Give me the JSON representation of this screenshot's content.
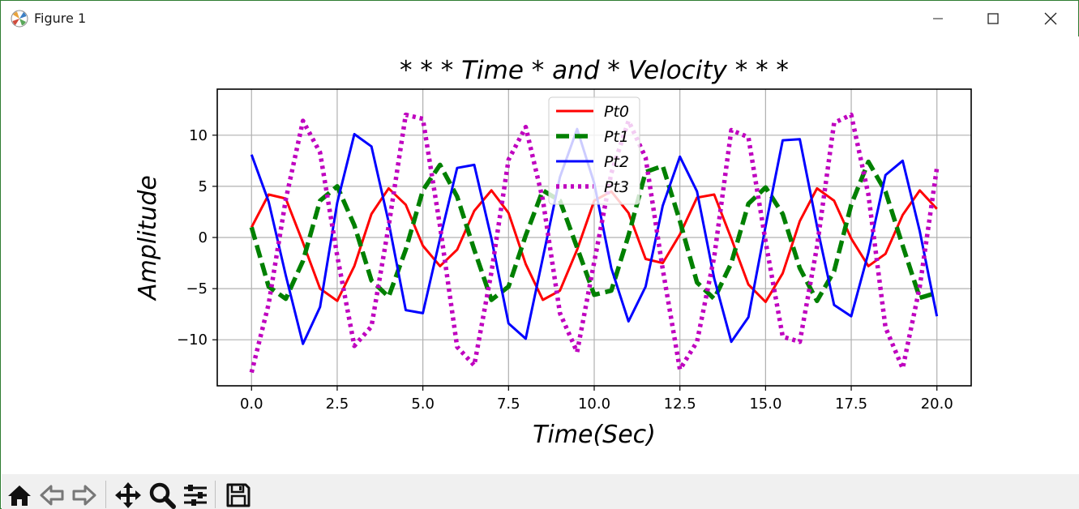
{
  "window": {
    "title": "Figure 1"
  },
  "toolbar": {
    "buttons": [
      {
        "icon": "home-icon"
      },
      {
        "icon": "back-arrow-icon"
      },
      {
        "icon": "forward-arrow-icon"
      },
      {
        "icon": "pan-icon"
      },
      {
        "icon": "zoom-icon"
      },
      {
        "icon": "configure-subplots-icon"
      },
      {
        "icon": "save-icon"
      }
    ]
  },
  "chart_data": {
    "type": "line",
    "title": "$***Time*and*Velocity***$",
    "title_display": "* * * Time * and * Velocity * * *",
    "xlabel": "Time(Sec)",
    "ylabel": "Amplitude",
    "xlim": [
      -1.0,
      21.0
    ],
    "ylim": [
      -14.5,
      14.5
    ],
    "xticks": [
      0.0,
      2.5,
      5.0,
      7.5,
      10.0,
      12.5,
      15.0,
      17.5,
      20.0
    ],
    "xtick_labels": [
      "0.0",
      "2.5",
      "5.0",
      "7.5",
      "10.0",
      "12.5",
      "15.0",
      "17.5",
      "20.0"
    ],
    "yticks": [
      -10,
      -5,
      0,
      5,
      10
    ],
    "ytick_labels": [
      "−10",
      "−5",
      "0",
      "5",
      "10"
    ],
    "grid": true,
    "legend_position": "upper center",
    "x": [
      0.0,
      0.5,
      1.0,
      1.5,
      2.0,
      2.5,
      3.0,
      3.5,
      4.0,
      4.5,
      5.0,
      5.5,
      6.0,
      6.5,
      7.0,
      7.5,
      8.0,
      8.5,
      9.0,
      9.5,
      10.0,
      10.5,
      11.0,
      11.5,
      12.0,
      12.5,
      13.0,
      13.5,
      14.0,
      14.5,
      15.0,
      15.5,
      16.0,
      16.5,
      17.0,
      17.5,
      18.0,
      18.5,
      19.0,
      19.5,
      20.0
    ],
    "series": [
      {
        "name": "Pt0",
        "color": "#ff0000",
        "style": "solid",
        "values": [
          1.0,
          4.2,
          3.8,
          -0.5,
          -5.0,
          -6.2,
          -2.8,
          2.3,
          4.8,
          3.2,
          -0.8,
          -2.8,
          -1.2,
          2.6,
          4.6,
          2.4,
          -2.6,
          -6.1,
          -5.2,
          -1.2,
          3.6,
          4.5,
          2.4,
          -2.1,
          -2.5,
          0.3,
          3.9,
          4.2,
          -0.1,
          -4.6,
          -6.3,
          -3.5,
          1.6,
          4.8,
          3.6,
          -0.1,
          -2.8,
          -1.6,
          2.2,
          4.6,
          2.8
        ]
      },
      {
        "name": "Pt1",
        "color": "#008000",
        "style": "dashed",
        "values": [
          1.0,
          -4.8,
          -6.0,
          -2.3,
          3.6,
          5.0,
          1.2,
          -4.2,
          -5.8,
          -1.2,
          4.6,
          7.1,
          4.0,
          -1.2,
          -6.1,
          -4.8,
          0.2,
          4.6,
          3.6,
          -1.0,
          -5.6,
          -5.2,
          0.2,
          6.4,
          7.0,
          1.6,
          -4.4,
          -6.0,
          -2.5,
          3.3,
          4.9,
          2.3,
          -3.0,
          -6.2,
          -3.3,
          3.2,
          7.4,
          4.5,
          -0.8,
          -5.9,
          -5.4
        ]
      },
      {
        "name": "Pt2",
        "color": "#0000ff",
        "style": "solid",
        "values": [
          8.1,
          3.5,
          -3.7,
          -10.4,
          -6.8,
          3.4,
          10.1,
          8.9,
          1.5,
          -7.1,
          -7.4,
          -0.1,
          6.8,
          7.1,
          -0.1,
          -8.4,
          -9.9,
          -2.0,
          5.9,
          10.6,
          5.3,
          -3.0,
          -8.2,
          -4.8,
          3.1,
          7.9,
          4.5,
          -4.0,
          -10.2,
          -7.8,
          1.1,
          9.5,
          9.6,
          1.1,
          -6.6,
          -7.7,
          -1.5,
          6.1,
          7.5,
          0.6,
          -7.7
        ]
      },
      {
        "name": "Pt3",
        "color": "#bf00bf",
        "style": "dotted",
        "values": [
          -13.2,
          -6.5,
          3.7,
          11.4,
          8.3,
          -1.8,
          -10.6,
          -8.7,
          1.1,
          12.0,
          11.6,
          1.1,
          -10.7,
          -12.5,
          -3.4,
          7.6,
          10.8,
          3.7,
          -7.4,
          -11.2,
          -2.4,
          6.3,
          11.4,
          7.8,
          -3.1,
          -12.9,
          -10.2,
          -1.9,
          10.5,
          9.8,
          -0.4,
          -9.7,
          -10.2,
          -0.9,
          11.2,
          12.0,
          4.2,
          -8.8,
          -12.8,
          -4.8,
          6.8
        ]
      }
    ]
  }
}
